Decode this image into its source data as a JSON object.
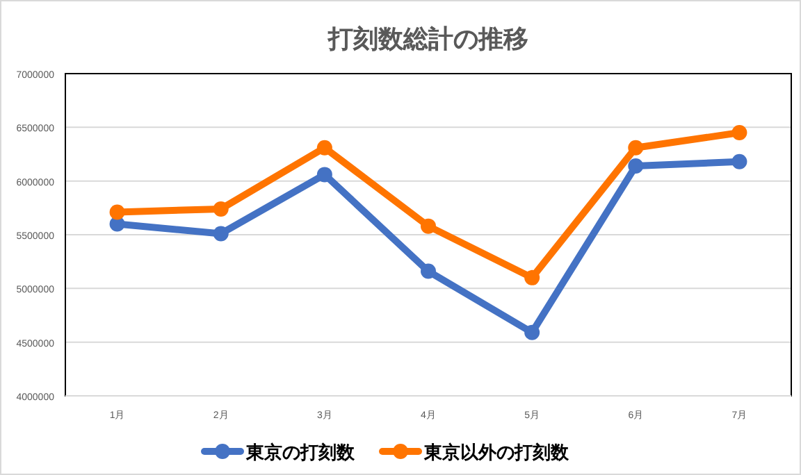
{
  "chart_data": {
    "type": "line",
    "title": "打刻数総計の推移",
    "categories": [
      "1月",
      "2月",
      "3月",
      "4月",
      "5月",
      "6月",
      "7月"
    ],
    "series": [
      {
        "name": "東京の打刻数",
        "color": "#4472c4",
        "values": [
          5600000,
          5510000,
          6060000,
          5160000,
          4590000,
          6140000,
          6180000
        ]
      },
      {
        "name": "東京以外の打刻数",
        "color": "#ff7400",
        "values": [
          5710000,
          5740000,
          6310000,
          5580000,
          5100000,
          6310000,
          6450000
        ]
      }
    ],
    "ylim": [
      4000000,
      7000000
    ],
    "yticks": [
      4000000,
      4500000,
      5000000,
      5500000,
      6000000,
      6500000,
      7000000
    ],
    "grid": "y",
    "legend": "bottom",
    "marker": "circle",
    "line_style": "solid"
  }
}
